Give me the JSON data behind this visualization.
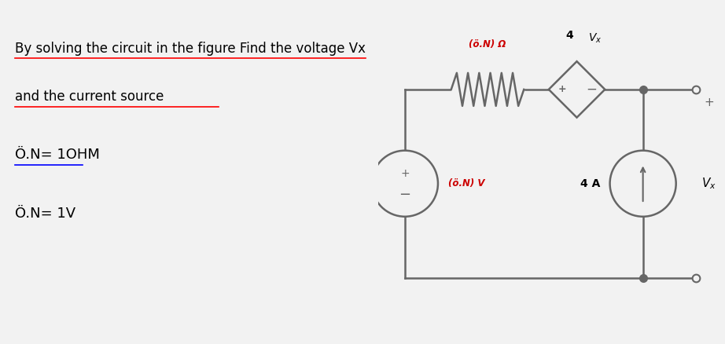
{
  "bg_color": "#f2f2f2",
  "title_line1": "By solving the circuit in the figure Find the voltage Vx",
  "title_line2": "and the current source",
  "answer1": "Ö.N= 1OHM",
  "answer2": "Ö.N= 1V",
  "gray": "#666666",
  "red": "#cc0000",
  "blue": "#3333cc",
  "lw": 1.8
}
